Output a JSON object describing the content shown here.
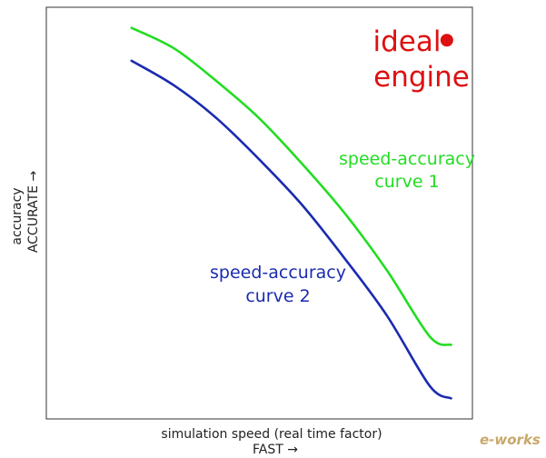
{
  "chart_data": {
    "type": "line",
    "title": "",
    "xlabel": "simulation speed (real time factor)",
    "xlabel_arrow": "FAST →",
    "ylabel": "accuracy",
    "ylabel_arrow": "ACCURATE →",
    "xlim": [
      0,
      1
    ],
    "ylim": [
      0,
      1
    ],
    "ticks": "none",
    "grid": false,
    "legend": "none",
    "series": [
      {
        "color": "#22dd22",
        "x": [
          0.2,
          0.3,
          0.4,
          0.5,
          0.6,
          0.7,
          0.8,
          0.9,
          0.95
        ],
        "y": [
          0.95,
          0.9,
          0.82,
          0.73,
          0.62,
          0.5,
          0.36,
          0.2,
          0.18
        ]
      },
      {
        "color": "#1a2bb0",
        "x": [
          0.2,
          0.3,
          0.4,
          0.5,
          0.6,
          0.7,
          0.8,
          0.9,
          0.95
        ],
        "y": [
          0.87,
          0.81,
          0.73,
          0.63,
          0.52,
          0.39,
          0.25,
          0.08,
          0.05
        ]
      }
    ],
    "points": [
      {
        "x": 0.94,
        "y": 0.92,
        "color": "#dd1111"
      }
    ],
    "annotations": {
      "curve1": {
        "lines": [
          "speed-accuracy",
          "curve 1"
        ],
        "color": "#22dd22"
      },
      "curve2": {
        "lines": [
          "speed-accuracy",
          "curve 2"
        ],
        "color": "#1a2bb0"
      },
      "ideal": {
        "lines": [
          "ideal",
          "engine"
        ],
        "color": "#dd1111"
      }
    }
  },
  "watermark": {
    "text": "e-works",
    "color": "#c9a86a"
  }
}
